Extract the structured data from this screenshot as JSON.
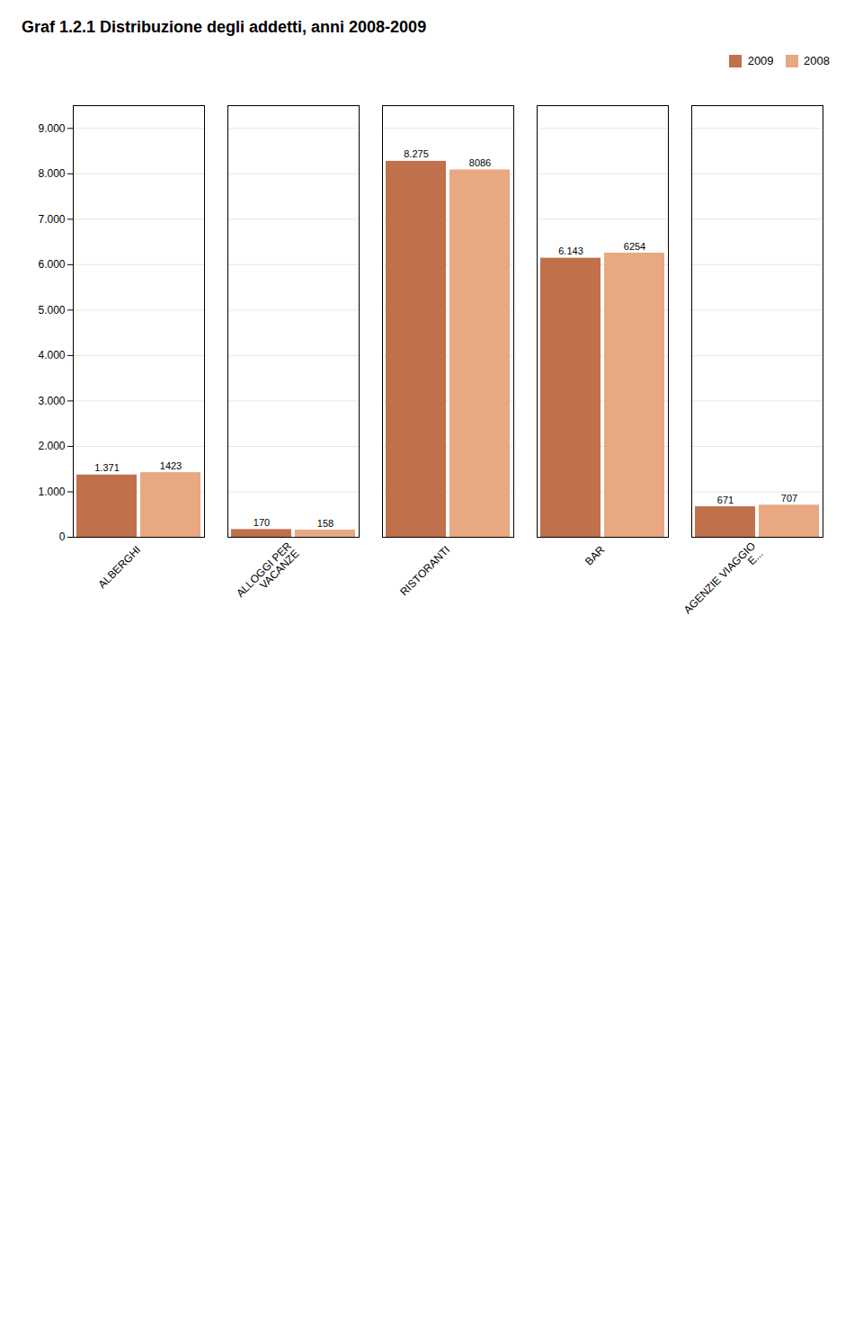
{
  "chart_data": {
    "type": "bar",
    "title": "Graf    1.2.1    Distribuzione degli addetti, anni 2008-2009",
    "categories": [
      "ALBERGHI",
      "ALLOGGI PER\nVACANZE",
      "RISTORANTI",
      "BAR",
      "AGENZIE VIAGGIO\nE..."
    ],
    "series": [
      {
        "name": "2009",
        "color": "#C0704A",
        "values": [
          1371,
          170,
          8275,
          6143,
          671
        ],
        "value_labels": [
          "1.371",
          "170",
          "8.275",
          "6.143",
          "671"
        ]
      },
      {
        "name": "2008",
        "color": "#E8A882",
        "values": [
          1423,
          158,
          8086,
          6254,
          707
        ]
      }
    ],
    "ylim": [
      0,
      9500
    ],
    "yticks": [
      0,
      {
        "value": 1000,
        "label": "1.000"
      },
      {
        "value": 2000,
        "label": "2.000"
      },
      {
        "value": 3000,
        "label": "3.000"
      },
      {
        "value": 4000,
        "label": "4.000"
      },
      {
        "value": 5000,
        "label": "5.000"
      },
      {
        "value": 6000,
        "label": "6.000"
      },
      {
        "value": 7000,
        "label": "7.000"
      },
      {
        "value": 8000,
        "label": "8.000"
      },
      {
        "value": 9000,
        "label": "9.000"
      }
    ],
    "grid": true,
    "legend": "upper right",
    "data_labels": true
  }
}
